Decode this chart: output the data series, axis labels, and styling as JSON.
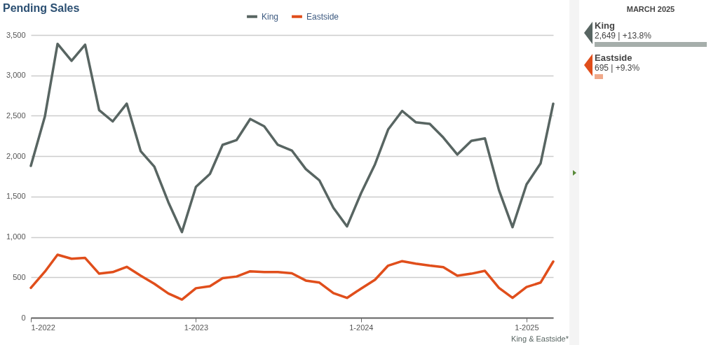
{
  "chart_data": [
    {
      "type": "line",
      "title": "Pending Sales",
      "x": [
        "2022-01",
        "2022-02",
        "2022-03",
        "2022-04",
        "2022-05",
        "2022-06",
        "2022-07",
        "2022-08",
        "2022-09",
        "2022-10",
        "2022-11",
        "2022-12",
        "2023-01",
        "2023-02",
        "2023-03",
        "2023-04",
        "2023-05",
        "2023-06",
        "2023-07",
        "2023-08",
        "2023-09",
        "2023-10",
        "2023-11",
        "2023-12",
        "2024-01",
        "2024-02",
        "2024-03",
        "2024-04",
        "2024-05",
        "2024-06",
        "2024-07",
        "2024-08",
        "2024-09",
        "2024-10",
        "2024-11",
        "2024-12",
        "2025-01",
        "2025-02",
        "2025-03"
      ],
      "series": [
        {
          "name": "King",
          "color": "#586562",
          "values": [
            1880,
            2490,
            3390,
            3180,
            3380,
            2570,
            2430,
            2650,
            2060,
            1870,
            1430,
            1060,
            1620,
            1780,
            2140,
            2200,
            2460,
            2370,
            2140,
            2070,
            1840,
            1700,
            1360,
            1130,
            1540,
            1900,
            2330,
            2560,
            2420,
            2400,
            2230,
            2020,
            2190,
            2220,
            1580,
            1120,
            1650,
            1910,
            2649
          ]
        },
        {
          "name": "Eastside",
          "color": "#e04e1b",
          "values": [
            370,
            570,
            780,
            730,
            740,
            545,
            565,
            630,
            520,
            420,
            300,
            225,
            365,
            390,
            490,
            510,
            575,
            565,
            565,
            550,
            460,
            435,
            305,
            245,
            360,
            470,
            645,
            700,
            670,
            645,
            625,
            520,
            545,
            580,
            370,
            245,
            380,
            435,
            695
          ]
        }
      ],
      "xlim": [
        "2022-01",
        "2025-03"
      ],
      "xticks": [
        {
          "value": "2022-01",
          "label": "1-2022"
        },
        {
          "value": "2023-01",
          "label": "1-2023"
        },
        {
          "value": "2024-01",
          "label": "1-2024"
        },
        {
          "value": "2025-01",
          "label": "1-2025"
        }
      ],
      "ylim": [
        0,
        3500
      ],
      "yticks": [
        0,
        500,
        {
          "value": 1000,
          "label": "1,000"
        },
        {
          "value": 1500,
          "label": "1,500"
        },
        {
          "value": 2000,
          "label": "2,000"
        },
        {
          "value": 2500,
          "label": "2,500"
        },
        {
          "value": 3000,
          "label": "3,000"
        },
        {
          "value": 3500,
          "label": "3,500"
        }
      ],
      "grid": "y",
      "legend": "top",
      "line_style": "solid",
      "annotations": [
        "King & Eastside*"
      ]
    },
    {
      "type": "other",
      "title": "MARCH 2025",
      "annotations": [
        "King",
        "2,649 | +13.8%",
        "Eastside",
        "695 | +9.3%"
      ]
    }
  ]
}
